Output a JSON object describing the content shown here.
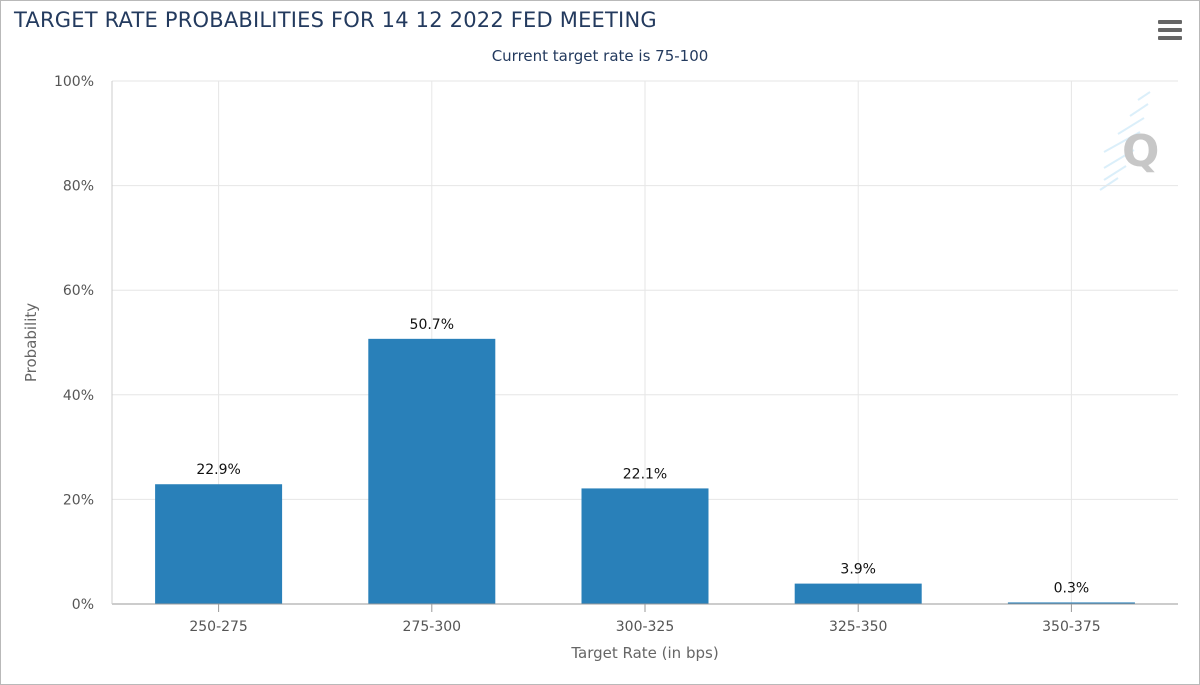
{
  "header": {
    "title": "TARGET RATE PROBABILITIES FOR 14 12 2022 FED MEETING",
    "subtitle": "Current target rate is 75-100"
  },
  "chart_data": {
    "type": "bar",
    "title": "TARGET RATE PROBABILITIES FOR 14 12 2022 FED MEETING",
    "subtitle": "Current target rate is 75-100",
    "categories": [
      "250-275",
      "275-300",
      "300-325",
      "325-350",
      "350-375"
    ],
    "values": [
      22.9,
      50.7,
      22.1,
      3.9,
      0.3
    ],
    "data_labels": [
      "22.9%",
      "50.7%",
      "22.1%",
      "3.9%",
      "0.3%"
    ],
    "xlabel": "Target Rate (in bps)",
    "ylabel": "Probability",
    "ylim": [
      0,
      100
    ],
    "yticks": [
      "0%",
      "20%",
      "40%",
      "60%",
      "80%",
      "100%"
    ],
    "ytick_values": [
      0,
      20,
      40,
      60,
      80,
      100
    ],
    "grid": true,
    "bar_color": "#2980b9"
  },
  "colors": {
    "title": "#233a5e",
    "bar": "#2980b9",
    "grid": "#e6e6e6"
  },
  "icons": {
    "menu": "hamburger-menu-icon",
    "watermark": "quikstrike-q-logo"
  }
}
